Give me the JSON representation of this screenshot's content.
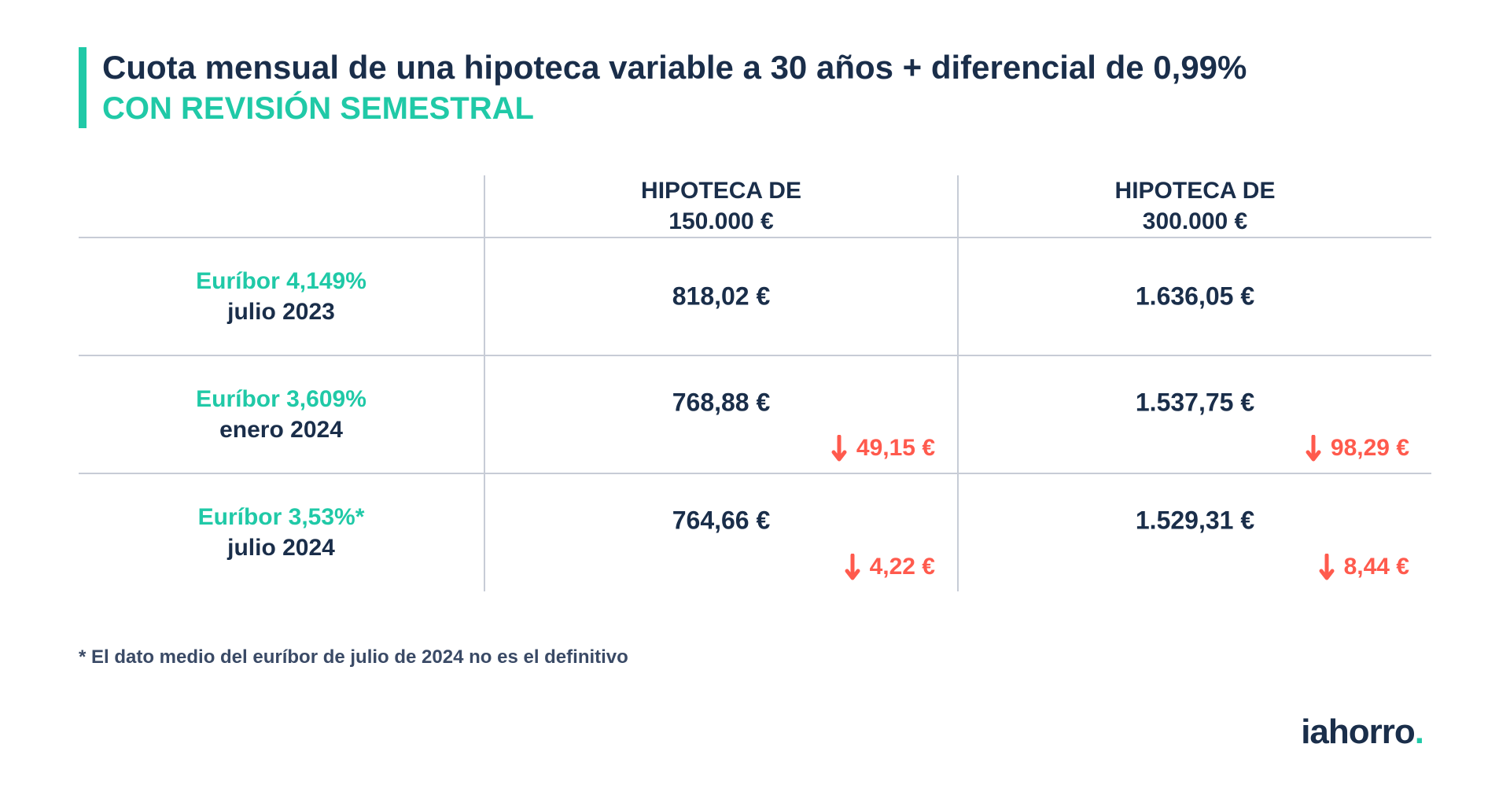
{
  "colors": {
    "accent": "#20c9a7",
    "text_primary": "#1a2e4a",
    "delta_down": "#ff5a4d",
    "rule": "#c7ccd6",
    "background": "#ffffff"
  },
  "header": {
    "line1": "Cuota mensual de una hipoteca variable a 30 años + diferencial de 0,99%",
    "line2": "CON REVISIÓN SEMESTRAL"
  },
  "table": {
    "type": "table",
    "columns": [
      {
        "line1": "HIPOTECA DE",
        "line2": "150.000 €"
      },
      {
        "line1": "HIPOTECA DE",
        "line2": "300.000 €"
      }
    ],
    "rows": [
      {
        "euribor": "Euríbor 4,149%",
        "period": "julio 2023",
        "values": [
          {
            "amount": "818,02 €",
            "delta": null
          },
          {
            "amount": "1.636,05 €",
            "delta": null
          }
        ]
      },
      {
        "euribor": "Euríbor 3,609%",
        "period": "enero 2024",
        "values": [
          {
            "amount": "768,88 €",
            "delta": "49,15 €"
          },
          {
            "amount": "1.537,75 €",
            "delta": "98,29 €"
          }
        ]
      },
      {
        "euribor": "Euríbor 3,53%*",
        "period": "julio 2024",
        "values": [
          {
            "amount": "764,66 €",
            "delta": "4,22 €"
          },
          {
            "amount": "1.529,31 €",
            "delta": "8,44 €"
          }
        ]
      }
    ]
  },
  "footnote": "* El dato medio del euríbor de julio de 2024 no es el definitivo",
  "brand": {
    "name": "iahorro",
    "dot": "."
  }
}
